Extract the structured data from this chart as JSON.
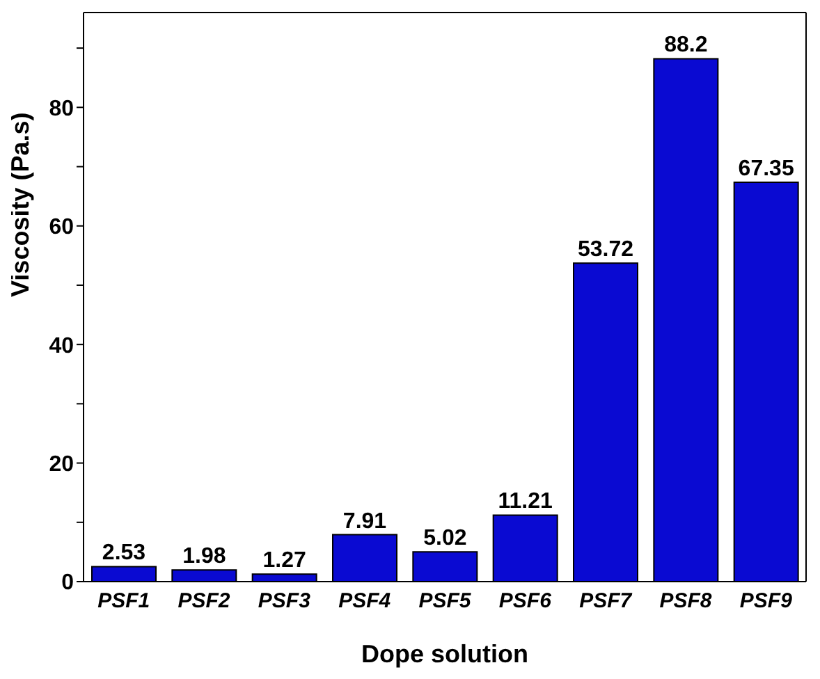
{
  "chart_data": {
    "type": "bar",
    "xlabel": "Dope solution",
    "ylabel": "Viscosity (Pa.s)",
    "categories": [
      "PSF1",
      "PSF2",
      "PSF3",
      "PSF4",
      "PSF5",
      "PSF6",
      "PSF7",
      "PSF8",
      "PSF9"
    ],
    "values": [
      2.53,
      1.98,
      1.27,
      7.91,
      5.02,
      11.21,
      53.72,
      88.2,
      67.35
    ],
    "color": "#0a0ad2",
    "ylim": [
      0,
      96
    ],
    "yticks": [
      0,
      {
        "value": 10,
        "label": null
      },
      20,
      {
        "value": 30,
        "label": null
      },
      40,
      {
        "value": 50,
        "label": null
      },
      60,
      {
        "value": 70,
        "label": null
      },
      80,
      {
        "value": 90,
        "label": null
      }
    ],
    "data_labels": true,
    "grid": false,
    "legend": false
  }
}
